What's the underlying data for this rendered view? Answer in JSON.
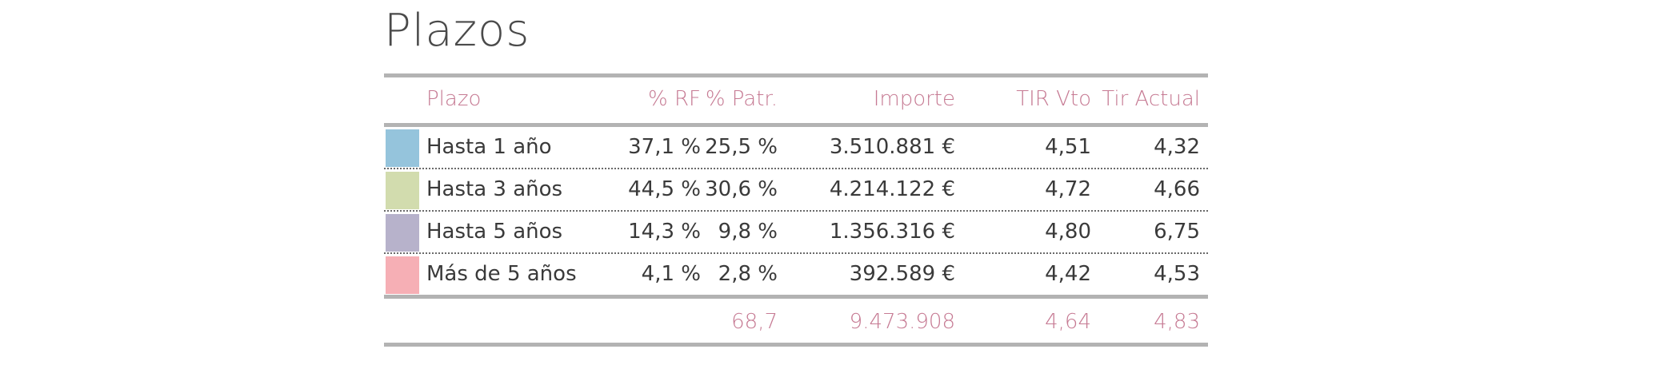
{
  "title": "Plazos",
  "headers": {
    "plazo": "Plazo",
    "rf": "% RF",
    "patr": "% Patr.",
    "importe": "Importe",
    "tir_vto": "TIR Vto",
    "tir_actual": "Tir Actual"
  },
  "rows": [
    {
      "color": "#95c4dc",
      "plazo": "Hasta 1 año",
      "rf": "37,1 %",
      "patr": "25,5 %",
      "importe": "3.510.881 €",
      "tir_vto": "4,51",
      "tir_actual": "4,32"
    },
    {
      "color": "#d2dcae",
      "plazo": "Hasta 3 años",
      "rf": "44,5 %",
      "patr": "30,6 %",
      "importe": "4.214.122 €",
      "tir_vto": "4,72",
      "tir_actual": "4,66"
    },
    {
      "color": "#b7b2cb",
      "plazo": "Hasta 5 años",
      "rf": "14,3 %",
      "patr": "9,8 %",
      "importe": "1.356.316 €",
      "tir_vto": "4,80",
      "tir_actual": "6,75"
    },
    {
      "color": "#f6afb5",
      "plazo": "Más de 5 años",
      "rf": "4,1 %",
      "patr": "2,8 %",
      "importe": "392.589 €",
      "tir_vto": "4,42",
      "tir_actual": "4,53"
    }
  ],
  "totals": {
    "patr": "68,7",
    "importe": "9.473.908",
    "tir_vto": "4,64",
    "tir_actual": "4,83"
  },
  "colors": {
    "header_text": "#c67a93",
    "rules": "#b3b3b3"
  }
}
